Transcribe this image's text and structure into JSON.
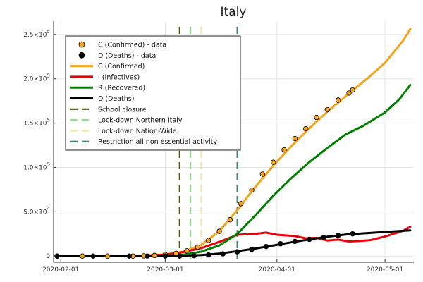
{
  "chart_data": {
    "type": "line",
    "title": "Italy",
    "xlabel": "",
    "ylabel": "",
    "x_axis": {
      "type": "date",
      "range": [
        "2020-01-30",
        "2020-05-09"
      ],
      "ticks": [
        "2020-02-01",
        "2020-03-01",
        "2020-04-01",
        "2020-05-01"
      ],
      "tick_labels": [
        "2020-02-01",
        "2020-03-01",
        "2020-04-01",
        "2020-05-01"
      ]
    },
    "y_axis": {
      "range": [
        -7000,
        265000
      ],
      "ticks": [
        0,
        50000,
        100000,
        150000,
        200000,
        250000
      ],
      "tick_labels": [
        {
          "mantissa": "0",
          "exp": ""
        },
        {
          "mantissa": "5.0×10",
          "exp": "4"
        },
        {
          "mantissa": "1.0×10",
          "exp": "5"
        },
        {
          "mantissa": "1.5×10",
          "exp": "5"
        },
        {
          "mantissa": "2.0×10",
          "exp": "5"
        },
        {
          "mantissa": "2.5×10",
          "exp": "5"
        }
      ]
    },
    "grid": true,
    "legend_position": "top-left",
    "series": [
      {
        "name": "C (Confirmed) - data",
        "kind": "scatter",
        "color": "#f5a31a",
        "points": [
          [
            "2020-01-31",
            2
          ],
          [
            "2020-02-07",
            3
          ],
          [
            "2020-02-14",
            3
          ],
          [
            "2020-02-21",
            20
          ],
          [
            "2020-02-24",
            229
          ],
          [
            "2020-02-27",
            655
          ],
          [
            "2020-03-01",
            1694
          ],
          [
            "2020-03-04",
            3089
          ],
          [
            "2020-03-07",
            5883
          ],
          [
            "2020-03-10",
            10149
          ],
          [
            "2020-03-13",
            17660
          ],
          [
            "2020-03-16",
            27980
          ],
          [
            "2020-03-19",
            41035
          ],
          [
            "2020-03-22",
            59138
          ],
          [
            "2020-03-25",
            74386
          ],
          [
            "2020-03-28",
            92472
          ],
          [
            "2020-03-31",
            105792
          ],
          [
            "2020-04-03",
            119827
          ],
          [
            "2020-04-06",
            132547
          ],
          [
            "2020-04-09",
            143626
          ],
          [
            "2020-04-12",
            156363
          ],
          [
            "2020-04-15",
            165155
          ],
          [
            "2020-04-18",
            175925
          ],
          [
            "2020-04-21",
            183957
          ],
          [
            "2020-04-22",
            187327
          ]
        ]
      },
      {
        "name": "D (Deaths) - data",
        "kind": "scatter",
        "color": "#000000",
        "points": [
          [
            "2020-01-31",
            0
          ],
          [
            "2020-02-10",
            0
          ],
          [
            "2020-02-20",
            0
          ],
          [
            "2020-02-25",
            11
          ],
          [
            "2020-03-01",
            34
          ],
          [
            "2020-03-05",
            148
          ],
          [
            "2020-03-09",
            463
          ],
          [
            "2020-03-13",
            1266
          ],
          [
            "2020-03-17",
            2503
          ],
          [
            "2020-03-21",
            4825
          ],
          [
            "2020-03-25",
            7503
          ],
          [
            "2020-03-29",
            10779
          ],
          [
            "2020-04-02",
            13915
          ],
          [
            "2020-04-06",
            16523
          ],
          [
            "2020-04-10",
            18849
          ],
          [
            "2020-04-14",
            21067
          ],
          [
            "2020-04-18",
            23227
          ],
          [
            "2020-04-22",
            25085
          ]
        ]
      },
      {
        "name": "C (Confirmed)",
        "kind": "line",
        "color": "#f5a31a",
        "points": [
          [
            "2020-01-31",
            0
          ],
          [
            "2020-02-15",
            0
          ],
          [
            "2020-02-25",
            600
          ],
          [
            "2020-03-01",
            2000
          ],
          [
            "2020-03-06",
            5000
          ],
          [
            "2020-03-11",
            12500
          ],
          [
            "2020-03-16",
            28000
          ],
          [
            "2020-03-21",
            52000
          ],
          [
            "2020-03-26",
            78000
          ],
          [
            "2020-03-31",
            102000
          ],
          [
            "2020-04-05",
            124000
          ],
          [
            "2020-04-10",
            144000
          ],
          [
            "2020-04-15",
            163000
          ],
          [
            "2020-04-20",
            180000
          ],
          [
            "2020-04-22",
            187000
          ],
          [
            "2020-04-26",
            200000
          ],
          [
            "2020-05-01",
            218000
          ],
          [
            "2020-05-06",
            243000
          ],
          [
            "2020-05-08",
            256000
          ]
        ]
      },
      {
        "name": "I (Infectives)",
        "kind": "line",
        "color": "#e8000b",
        "points": [
          [
            "2020-01-31",
            0
          ],
          [
            "2020-02-20",
            0
          ],
          [
            "2020-03-01",
            1500
          ],
          [
            "2020-03-06",
            4500
          ],
          [
            "2020-03-11",
            9000
          ],
          [
            "2020-03-16",
            16000
          ],
          [
            "2020-03-21",
            24000
          ],
          [
            "2020-03-26",
            25000
          ],
          [
            "2020-03-29",
            26500
          ],
          [
            "2020-04-01",
            24000
          ],
          [
            "2020-04-06",
            22500
          ],
          [
            "2020-04-09",
            20000
          ],
          [
            "2020-04-12",
            20500
          ],
          [
            "2020-04-15",
            17500
          ],
          [
            "2020-04-18",
            18500
          ],
          [
            "2020-04-21",
            16500
          ],
          [
            "2020-04-24",
            17000
          ],
          [
            "2020-04-27",
            18000
          ],
          [
            "2020-05-01",
            22000
          ],
          [
            "2020-05-06",
            28500
          ],
          [
            "2020-05-08",
            33000
          ]
        ]
      },
      {
        "name": "R (Recovered)",
        "kind": "line",
        "color": "#008000",
        "points": [
          [
            "2020-01-31",
            0
          ],
          [
            "2020-02-20",
            0
          ],
          [
            "2020-03-01",
            500
          ],
          [
            "2020-03-06",
            1500
          ],
          [
            "2020-03-11",
            5000
          ],
          [
            "2020-03-16",
            12000
          ],
          [
            "2020-03-21",
            25000
          ],
          [
            "2020-03-26",
            46000
          ],
          [
            "2020-03-31",
            68000
          ],
          [
            "2020-04-05",
            88000
          ],
          [
            "2020-04-10",
            106000
          ],
          [
            "2020-04-15",
            122000
          ],
          [
            "2020-04-20",
            137000
          ],
          [
            "2020-04-25",
            147000
          ],
          [
            "2020-05-01",
            162000
          ],
          [
            "2020-05-05",
            177000
          ],
          [
            "2020-05-08",
            193000
          ]
        ]
      },
      {
        "name": "D (Deaths)",
        "kind": "line",
        "color": "#000000",
        "points": [
          [
            "2020-01-31",
            0
          ],
          [
            "2020-02-25",
            0
          ],
          [
            "2020-03-06",
            300
          ],
          [
            "2020-03-11",
            1200
          ],
          [
            "2020-03-16",
            2800
          ],
          [
            "2020-03-21",
            5500
          ],
          [
            "2020-03-26",
            8500
          ],
          [
            "2020-03-31",
            12000
          ],
          [
            "2020-04-05",
            15500
          ],
          [
            "2020-04-10",
            18800
          ],
          [
            "2020-04-15",
            21800
          ],
          [
            "2020-04-20",
            24200
          ],
          [
            "2020-04-25",
            25600
          ],
          [
            "2020-05-01",
            27200
          ],
          [
            "2020-05-08",
            29000
          ]
        ]
      },
      {
        "name": "School closure",
        "kind": "vline",
        "color": "#4f5010",
        "x": "2020-03-05"
      },
      {
        "name": "Lock-down Northern Italy",
        "kind": "vline",
        "color": "#90dd8e",
        "x": "2020-03-08"
      },
      {
        "name": "Lock-down Nation-Wide",
        "kind": "vline",
        "color": "#f1e2a2",
        "x": "2020-03-11"
      },
      {
        "name": "Restriction all non essential activity",
        "kind": "vline",
        "color": "#3f8878",
        "x": "2020-03-21"
      }
    ]
  }
}
